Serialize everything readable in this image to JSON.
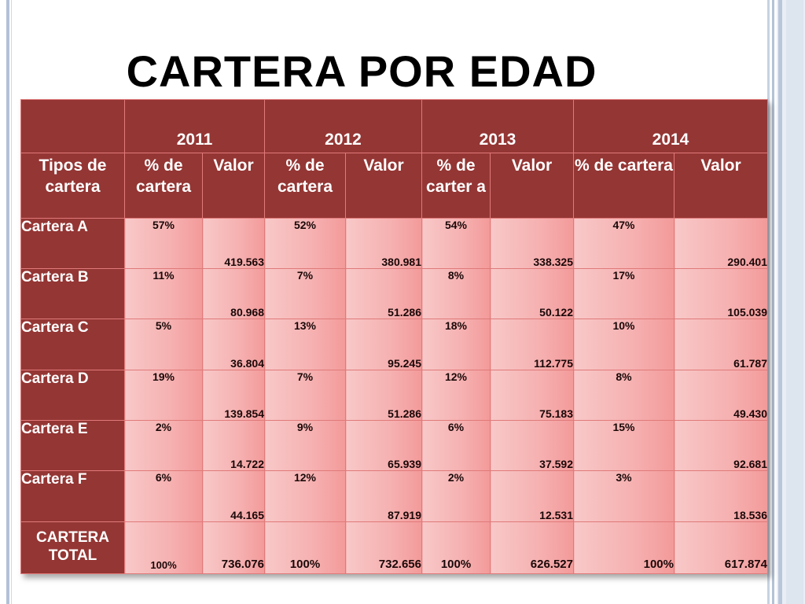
{
  "slide": {
    "title": "CARTERA POR EDAD"
  },
  "table": {
    "years": [
      "2011",
      "2012",
      "2013",
      "2014"
    ],
    "subheaders": {
      "tipos": "Tipos de cartera",
      "pct_2011": "% de cartera",
      "val_2011": "Valor",
      "pct_2012": "% de cartera",
      "val_2012": "Valor",
      "pct_2013": "% de carter a",
      "val_2013": "Valor",
      "pct_2014": "% de cartera",
      "val_2014": "Valor"
    },
    "rows": [
      {
        "name": "Cartera A",
        "cells": [
          "57%",
          "419.563",
          "52%",
          "380.981",
          "54%",
          "338.325",
          "47%",
          "290.401"
        ]
      },
      {
        "name": "Cartera B",
        "cells": [
          "11%",
          "80.968",
          "7%",
          "51.286",
          "8%",
          "50.122",
          "17%",
          "105.039"
        ]
      },
      {
        "name": "Cartera C",
        "cells": [
          "5%",
          "36.804",
          "13%",
          "95.245",
          "18%",
          "112.775",
          "10%",
          "61.787"
        ]
      },
      {
        "name": "Cartera D",
        "cells": [
          "19%",
          "139.854",
          "7%",
          "51.286",
          "12%",
          "75.183",
          "8%",
          "49.430"
        ]
      },
      {
        "name": "Cartera E",
        "cells": [
          "2%",
          "14.722",
          "9%",
          "65.939",
          "6%",
          "37.592",
          "15%",
          "92.681"
        ]
      },
      {
        "name": "Cartera F",
        "cells": [
          "6%",
          "44.165",
          "12%",
          "87.919",
          "2%",
          "12.531",
          "3%",
          "18.536"
        ]
      }
    ],
    "total": {
      "name": "CARTERA TOTAL",
      "cells": [
        "100%",
        "736.076",
        "100%",
        "732.656",
        "100%",
        "626.527",
        "100%",
        "617.874"
      ]
    }
  },
  "colors": {
    "header_bg": "#943634",
    "cell_light": "#f8c8c8",
    "cell_dark": "#f39a9a",
    "border": "#e07a7a"
  }
}
